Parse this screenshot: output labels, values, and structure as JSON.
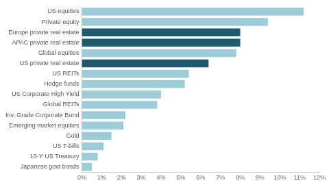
{
  "chart_data": {
    "type": "bar",
    "orientation": "horizontal",
    "categories": [
      "US equities",
      "Private equity",
      "Europe private real estate",
      "APAC private real estate",
      "Global equities",
      "US private real estate",
      "US REITs",
      "Hedge funds",
      "US Corporate High Yield",
      "Global REITs",
      "Inv. Grade Corporate Bond",
      "Emerging market equities",
      "Gold",
      "US T-bills",
      "10-Y US Treasury",
      "Japanese govt bonds"
    ],
    "values": [
      11.2,
      9.4,
      8.0,
      8.0,
      7.8,
      6.4,
      5.4,
      5.2,
      4.0,
      3.8,
      2.2,
      2.1,
      1.5,
      1.1,
      0.8,
      0.5
    ],
    "colors": [
      "#9ecbd8",
      "#9ecbd8",
      "#1e5a6b",
      "#1e5a6b",
      "#9ecbd8",
      "#1e5a6b",
      "#9ecbd8",
      "#9ecbd8",
      "#9ecbd8",
      "#9ecbd8",
      "#9ecbd8",
      "#9ecbd8",
      "#9ecbd8",
      "#9ecbd8",
      "#9ecbd8",
      "#9ecbd8"
    ],
    "xlim": [
      0,
      12
    ],
    "xticks": [
      {
        "value": 0,
        "label": "0%"
      },
      {
        "value": 1,
        "label": "1%"
      },
      {
        "value": 2,
        "label": "2%"
      },
      {
        "value": 3,
        "label": "3%"
      },
      {
        "value": 4,
        "label": "4%"
      },
      {
        "value": 5,
        "label": "5%"
      },
      {
        "value": 6,
        "label": "6%"
      },
      {
        "value": 7,
        "label": "7%"
      },
      {
        "value": 8,
        "label": "8%"
      },
      {
        "value": 9,
        "label": "9%"
      },
      {
        "value": 10,
        "label": "10%"
      },
      {
        "value": 11,
        "label": "11%"
      },
      {
        "value": 12,
        "label": "12%"
      }
    ],
    "grid": false
  }
}
